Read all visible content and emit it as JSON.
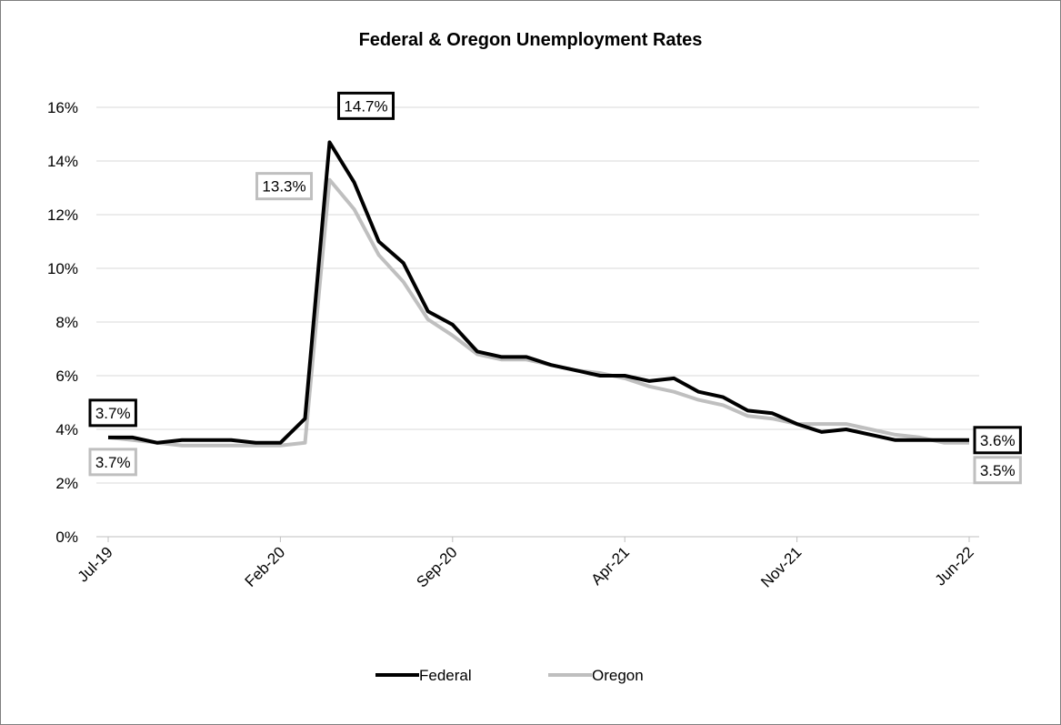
{
  "chart_data": {
    "type": "line",
    "title": "Federal & Oregon Unemployment Rates",
    "xlabel": "",
    "ylabel": "",
    "ylim": [
      0,
      16
    ],
    "y_ticks": [
      "0%",
      "2%",
      "4%",
      "6%",
      "8%",
      "10%",
      "12%",
      "14%",
      "16%"
    ],
    "x_tick_labels": [
      "Jul-19",
      "Feb-20",
      "Sep-20",
      "Apr-21",
      "Nov-21",
      "Jun-22"
    ],
    "x": [
      "Jul-19",
      "Aug-19",
      "Sep-19",
      "Oct-19",
      "Nov-19",
      "Dec-19",
      "Jan-20",
      "Feb-20",
      "Mar-20",
      "Apr-20",
      "May-20",
      "Jun-20",
      "Jul-20",
      "Aug-20",
      "Sep-20",
      "Oct-20",
      "Nov-20",
      "Dec-20",
      "Jan-21",
      "Feb-21",
      "Mar-21",
      "Apr-21",
      "May-21",
      "Jun-21",
      "Jul-21",
      "Aug-21",
      "Sep-21",
      "Oct-21",
      "Nov-21",
      "Dec-21",
      "Jan-22",
      "Feb-22",
      "Mar-22",
      "Apr-22",
      "May-22",
      "Jun-22"
    ],
    "grid": true,
    "legend_position": "bottom",
    "series": [
      {
        "name": "Federal",
        "color": "#000000",
        "values": [
          3.7,
          3.7,
          3.5,
          3.6,
          3.6,
          3.6,
          3.5,
          3.5,
          4.4,
          14.7,
          13.2,
          11.0,
          10.2,
          8.4,
          7.9,
          6.9,
          6.7,
          6.7,
          6.4,
          6.2,
          6.0,
          6.0,
          5.8,
          5.9,
          5.4,
          5.2,
          4.7,
          4.6,
          4.2,
          3.9,
          4.0,
          3.8,
          3.6,
          3.6,
          3.6,
          3.6
        ]
      },
      {
        "name": "Oregon",
        "color": "#bfbfbf",
        "values": [
          3.7,
          3.6,
          3.5,
          3.4,
          3.4,
          3.4,
          3.4,
          3.4,
          3.5,
          13.3,
          12.2,
          10.5,
          9.5,
          8.1,
          7.5,
          6.8,
          6.6,
          6.6,
          6.4,
          6.2,
          6.1,
          5.9,
          5.6,
          5.4,
          5.1,
          4.9,
          4.5,
          4.4,
          4.2,
          4.2,
          4.2,
          4.0,
          3.8,
          3.7,
          3.5,
          3.5
        ]
      }
    ],
    "data_labels": [
      {
        "series": "Federal",
        "index": 0,
        "text": "3.7%"
      },
      {
        "series": "Oregon",
        "index": 0,
        "text": "3.7%"
      },
      {
        "series": "Federal",
        "index": 9,
        "text": "14.7%"
      },
      {
        "series": "Oregon",
        "index": 9,
        "text": "13.3%"
      },
      {
        "series": "Federal",
        "index": 35,
        "text": "3.6%"
      },
      {
        "series": "Oregon",
        "index": 35,
        "text": "3.5%"
      }
    ]
  }
}
